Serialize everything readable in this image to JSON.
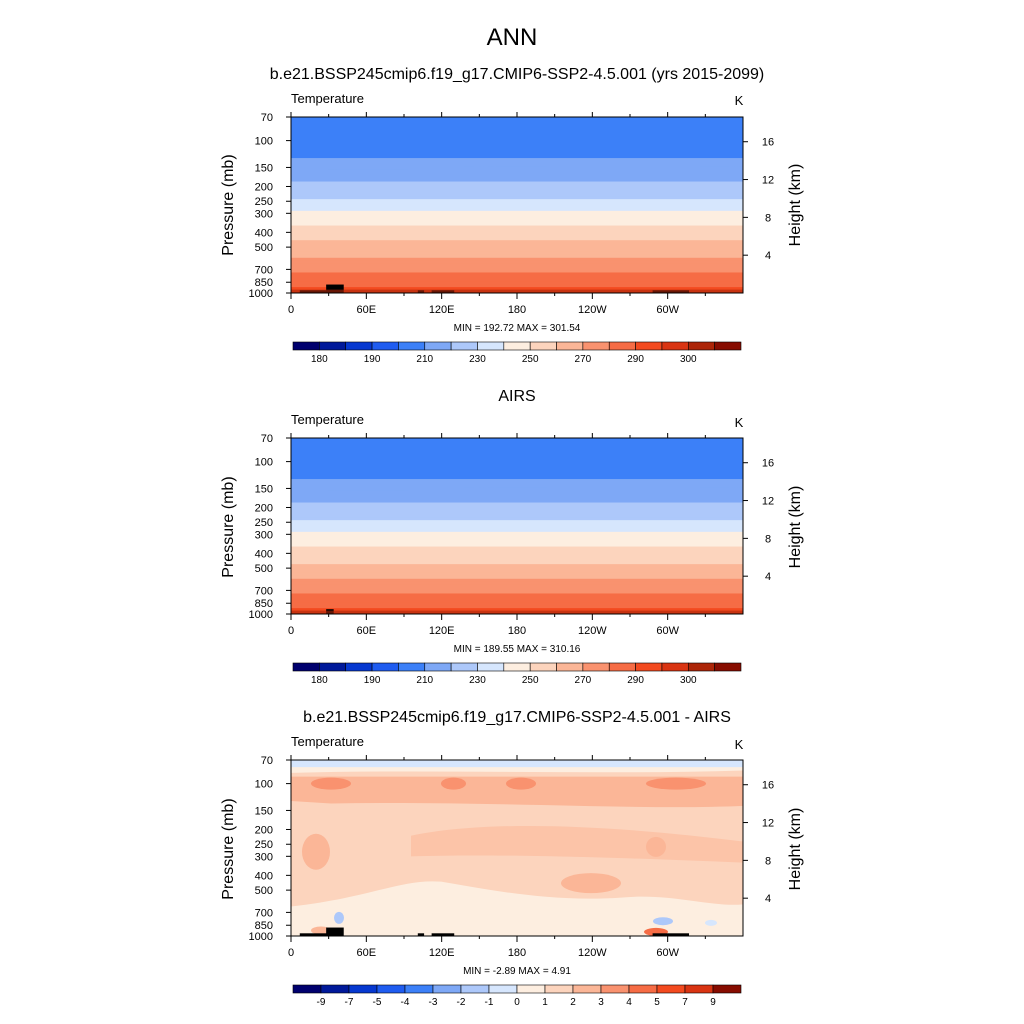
{
  "figure": {
    "title": "ANN"
  },
  "panels": [
    {
      "title": "b.e21.BSSP245cmip6.f19_g17.CMIP6-SSP2-4.5.001 (yrs 2015-2099)",
      "variable": "Temperature",
      "units": "K",
      "stats": "MIN = 192.72  MAX = 301.54",
      "ylabel": "Pressure (mb)",
      "ylabel_right": "Height (km)"
    },
    {
      "title": "AIRS",
      "variable": "Temperature",
      "units": "K",
      "stats": "MIN = 189.55  MAX = 310.16",
      "ylabel": "Pressure (mb)",
      "ylabel_right": "Height (km)"
    },
    {
      "title": "b.e21.BSSP245cmip6.f19_g17.CMIP6-SSP2-4.5.001 - AIRS",
      "variable": "Temperature",
      "units": "K",
      "stats": "MIN =  -2.89  MAX =   4.91",
      "ylabel": "Pressure (mb)",
      "ylabel_right": "Height (km)"
    }
  ],
  "chart_data": [
    {
      "type": "heatmap",
      "title": "b.e21.BSSP245cmip6.f19_g17.CMIP6-SSP2-4.5.001 (yrs 2015-2099)",
      "xlabel": "",
      "ylabel": "Pressure (mb)",
      "ylabel_right": "Height (km)",
      "x_ticks": [
        "0",
        "60E",
        "120E",
        "180",
        "120W",
        "60W"
      ],
      "y_ticks": [
        "70",
        "100",
        "150",
        "200",
        "250",
        "300",
        "400",
        "500",
        "700",
        "850",
        "1000"
      ],
      "y_ticks_right": [
        "4",
        "8",
        "12",
        "16"
      ],
      "xlim": [
        0,
        360
      ],
      "ylim": [
        1000,
        70
      ],
      "y_scale": "log",
      "colorbar_labels": [
        "180",
        "190",
        "210",
        "230",
        "250",
        "270",
        "290",
        "300"
      ],
      "colorbar_colors": [
        "#00006e",
        "#00199a",
        "#0638d0",
        "#1f5cf0",
        "#3c80f8",
        "#7ea8f6",
        "#adc8fa",
        "#d6e6fd",
        "#fdeee0",
        "#fcd4bd",
        "#fbb697",
        "#f9926f",
        "#f66c45",
        "#f34a1f",
        "#d93412",
        "#ac2508",
        "#870c00"
      ],
      "colorbar_levels": [
        180,
        185,
        190,
        200,
        210,
        220,
        230,
        240,
        250,
        260,
        270,
        280,
        290,
        295,
        300
      ],
      "levels_band": [
        {
          "p": 70,
          "T": 204
        },
        {
          "p": 100,
          "T": 204
        },
        {
          "p": 150,
          "T": 213
        },
        {
          "p": 200,
          "T": 222
        },
        {
          "p": 250,
          "T": 232
        },
        {
          "p": 300,
          "T": 242
        },
        {
          "p": 400,
          "T": 255
        },
        {
          "p": 500,
          "T": 264
        },
        {
          "p": 700,
          "T": 278
        },
        {
          "p": 850,
          "T": 287
        },
        {
          "p": 1000,
          "T": 295
        }
      ],
      "min": 192.72,
      "max": 301.54
    },
    {
      "type": "heatmap",
      "title": "AIRS",
      "xlabel": "",
      "ylabel": "Pressure (mb)",
      "ylabel_right": "Height (km)",
      "x_ticks": [
        "0",
        "60E",
        "120E",
        "180",
        "120W",
        "60W"
      ],
      "y_ticks": [
        "70",
        "100",
        "150",
        "200",
        "250",
        "300",
        "400",
        "500",
        "700",
        "850",
        "1000"
      ],
      "y_ticks_right": [
        "4",
        "8",
        "12",
        "16"
      ],
      "xlim": [
        0,
        360
      ],
      "ylim": [
        1000,
        70
      ],
      "y_scale": "log",
      "colorbar_labels": [
        "180",
        "190",
        "210",
        "230",
        "250",
        "270",
        "290",
        "300"
      ],
      "colorbar_colors": [
        "#00006e",
        "#00199a",
        "#0638d0",
        "#1f5cf0",
        "#3c80f8",
        "#7ea8f6",
        "#adc8fa",
        "#d6e6fd",
        "#fdeee0",
        "#fcd4bd",
        "#fbb697",
        "#f9926f",
        "#f66c45",
        "#f34a1f",
        "#d93412",
        "#ac2508",
        "#870c00"
      ],
      "levels_band": [
        {
          "p": 70,
          "T": 204
        },
        {
          "p": 100,
          "T": 203
        },
        {
          "p": 150,
          "T": 213
        },
        {
          "p": 200,
          "T": 222
        },
        {
          "p": 250,
          "T": 232
        },
        {
          "p": 300,
          "T": 242
        },
        {
          "p": 400,
          "T": 254
        },
        {
          "p": 500,
          "T": 263
        },
        {
          "p": 700,
          "T": 277
        },
        {
          "p": 850,
          "T": 287
        },
        {
          "p": 1000,
          "T": 296
        }
      ],
      "min": 189.55,
      "max": 310.16
    },
    {
      "type": "heatmap",
      "title": "b.e21.BSSP245cmip6.f19_g17.CMIP6-SSP2-4.5.001 - AIRS",
      "xlabel": "",
      "ylabel": "Pressure (mb)",
      "ylabel_right": "Height (km)",
      "x_ticks": [
        "0",
        "60E",
        "120E",
        "180",
        "120W",
        "60W"
      ],
      "y_ticks": [
        "70",
        "100",
        "150",
        "200",
        "250",
        "300",
        "400",
        "500",
        "700",
        "850",
        "1000"
      ],
      "y_ticks_right": [
        "4",
        "8",
        "12",
        "16"
      ],
      "xlim": [
        0,
        360
      ],
      "ylim": [
        1000,
        70
      ],
      "y_scale": "log",
      "colorbar_labels": [
        "-9",
        "-7",
        "-5",
        "-4",
        "-3",
        "-2",
        "-1",
        "0",
        "1",
        "2",
        "3",
        "4",
        "5",
        "7",
        "9"
      ],
      "colorbar_colors": [
        "#00006e",
        "#00199a",
        "#0638d0",
        "#1f5cf0",
        "#3c80f8",
        "#7ea8f6",
        "#adc8fa",
        "#d6e6fd",
        "#fdeee0",
        "#fcd4bd",
        "#fbb697",
        "#f9926f",
        "#f66c45",
        "#f34a1f",
        "#d93412",
        "#870c00"
      ],
      "dominant_value_range": [
        1,
        2
      ],
      "min": -2.89,
      "max": 4.91
    }
  ],
  "colors": {
    "frame": "#000000",
    "topography": "#000000"
  }
}
